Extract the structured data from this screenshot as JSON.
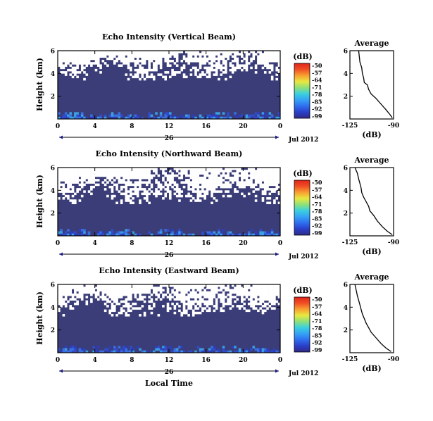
{
  "colors": {
    "background_fill": "#3b3d78",
    "missing": "#ffffff",
    "colorbar": [
      "#2f2a86",
      "#2a3ec8",
      "#2f6ef0",
      "#35a2f5",
      "#3ad0e0",
      "#8ee07a",
      "#e8e840",
      "#f8a030",
      "#f04f24",
      "#e2231a"
    ]
  },
  "chart_data": [
    {
      "type": "heatmap",
      "title": "Echo Intensity (Vertical Beam)",
      "ylabel": "Height (km)",
      "x_ticks": [
        "0",
        "4",
        "8",
        "12",
        "16",
        "20",
        "0"
      ],
      "y_ticks": [
        "6",
        "4",
        "2"
      ],
      "xlim": [
        0,
        24
      ],
      "ylim": [
        0,
        6
      ],
      "date_day": "26",
      "date_label": "Jul 2012",
      "colorbar_label": "(dB)",
      "colorbar_ticks": [
        "-50",
        "-57",
        "-64",
        "-71",
        "-78",
        "-85",
        "-92",
        "-99"
      ],
      "clim": [
        -99,
        -50
      ],
      "missing_top_km": 3.8,
      "seed": 11
    },
    {
      "type": "heatmap",
      "title": "Echo Intensity (Northward Beam)",
      "ylabel": "Height (km)",
      "x_ticks": [
        "0",
        "4",
        "8",
        "12",
        "16",
        "20",
        "0"
      ],
      "y_ticks": [
        "6",
        "4",
        "2"
      ],
      "xlim": [
        0,
        24
      ],
      "ylim": [
        0,
        6
      ],
      "date_day": "26",
      "date_label": "Jul 2012",
      "colorbar_label": "(dB)",
      "colorbar_ticks": [
        "-50",
        "-57",
        "-64",
        "-71",
        "-78",
        "-85",
        "-92",
        "-99"
      ],
      "clim": [
        -99,
        -50
      ],
      "missing_top_km": 3.2,
      "seed": 29
    },
    {
      "type": "heatmap",
      "title": "Echo Intensity (Eastward Beam)",
      "ylabel": "Height (km)",
      "x_ticks": [
        "0",
        "4",
        "8",
        "12",
        "16",
        "20",
        "0"
      ],
      "y_ticks": [
        "6",
        "4",
        "2"
      ],
      "xlim": [
        0,
        24
      ],
      "ylim": [
        0,
        6
      ],
      "date_day": "26",
      "date_label": "Jul 2012",
      "xlabel": "Local Time",
      "colorbar_label": "(dB)",
      "colorbar_ticks": [
        "-50",
        "-57",
        "-64",
        "-71",
        "-78",
        "-85",
        "-92",
        "-99"
      ],
      "clim": [
        -99,
        -50
      ],
      "missing_top_km": 3.6,
      "seed": 47
    },
    {
      "type": "line",
      "title": "Average",
      "xlabel": "(dB)",
      "x_ticks": [
        "-125",
        "-90"
      ],
      "y_ticks": [
        "6",
        "4",
        "2"
      ],
      "xlim": [
        -125,
        -90
      ],
      "ylim": [
        0,
        6
      ],
      "x": [
        -118.0,
        -117.5,
        -117.0,
        -115.5,
        -115.0,
        -114.0,
        -113.5,
        -111.0,
        -110.0,
        -108.0,
        -104.0,
        -100.0,
        -96.0,
        -93.0,
        -91.0
      ],
      "y": [
        6.0,
        5.5,
        5.0,
        4.5,
        4.0,
        3.6,
        3.2,
        3.0,
        2.6,
        2.2,
        1.8,
        1.3,
        0.8,
        0.4,
        0.1
      ]
    },
    {
      "type": "line",
      "title": "Average",
      "xlabel": "(dB)",
      "x_ticks": [
        "-125",
        "-90"
      ],
      "y_ticks": [
        "6",
        "4",
        "2"
      ],
      "xlim": [
        -125,
        -90
      ],
      "ylim": [
        0,
        6
      ],
      "x": [
        -121.0,
        -119.0,
        -118.0,
        -117.0,
        -116.0,
        -115.5,
        -114.0,
        -112.0,
        -110.0,
        -109.0,
        -106.0,
        -103.0,
        -99.0,
        -95.0,
        -91.0
      ],
      "y": [
        6.0,
        5.5,
        5.0,
        4.6,
        4.2,
        3.8,
        3.4,
        3.0,
        2.6,
        2.2,
        1.8,
        1.3,
        0.8,
        0.4,
        0.1
      ]
    },
    {
      "type": "line",
      "title": "Average",
      "xlabel": "(dB)",
      "x_ticks": [
        "-125",
        "-90"
      ],
      "y_ticks": [
        "6",
        "4",
        "2"
      ],
      "xlim": [
        -125,
        -90
      ],
      "ylim": [
        0,
        6
      ],
      "x": [
        -121.0,
        -120.0,
        -119.0,
        -118.0,
        -117.0,
        -116.0,
        -115.0,
        -113.5,
        -112.0,
        -110.0,
        -108.0,
        -104.0,
        -100.0,
        -96.0,
        -92.0
      ],
      "y": [
        6.0,
        5.5,
        5.0,
        4.6,
        4.2,
        3.8,
        3.4,
        3.0,
        2.6,
        2.2,
        1.8,
        1.3,
        0.8,
        0.4,
        0.1
      ]
    }
  ]
}
